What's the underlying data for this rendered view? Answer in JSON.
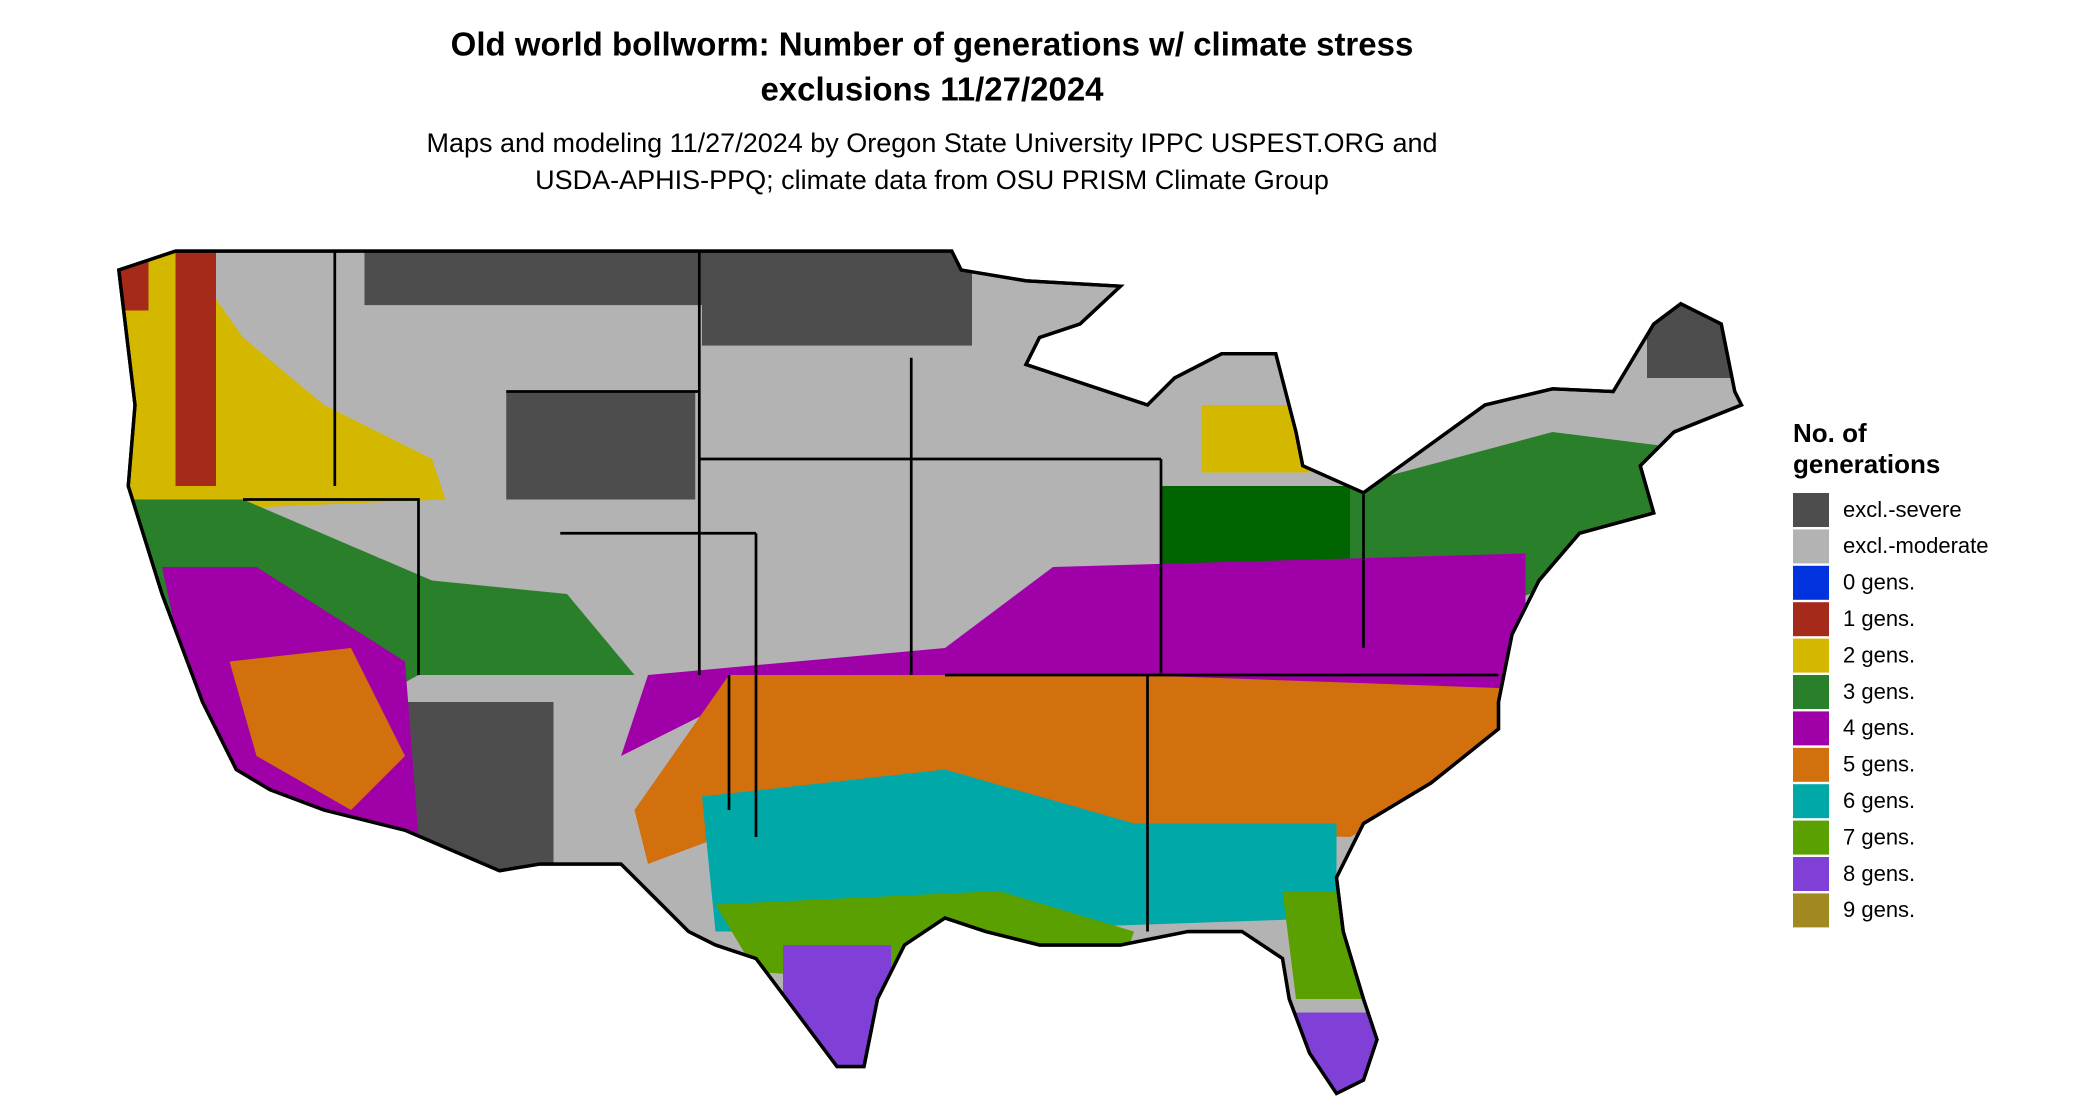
{
  "header": {
    "title": [
      "Old world bollworm: Number of generations w/ climate stress",
      "exclusions 11/27/2024"
    ],
    "subtitle": [
      "Maps and modeling 11/27/2024 by Oregon State University IPPC USPEST.ORG and",
      "USDA-APHIS-PPQ; climate data from OSU PRISM Climate Group"
    ]
  },
  "legend": {
    "title": [
      "No. of",
      "generations"
    ],
    "items": [
      {
        "label": "excl.-severe",
        "color": "#4d4d4d"
      },
      {
        "label": "excl.-moderate",
        "color": "#b3b3b3"
      },
      {
        "label": "0 gens.",
        "color": "#0033dd"
      },
      {
        "label": "1 gens.",
        "color": "#a52a1a"
      },
      {
        "label": "2 gens.",
        "color": "#d4b800"
      },
      {
        "label": "3 gens.",
        "color": "#2a7f2a"
      },
      {
        "label": "4 gens.",
        "color": "#a000a8"
      },
      {
        "label": "5 gens.",
        "color": "#d2700d"
      },
      {
        "label": "6 gens.",
        "color": "#00a8a8"
      },
      {
        "label": "7 gens.",
        "color": "#5aa000"
      },
      {
        "label": "8 gens.",
        "color": "#8040d8"
      },
      {
        "label": "9 gens.",
        "color": "#a08a20"
      }
    ]
  }
}
